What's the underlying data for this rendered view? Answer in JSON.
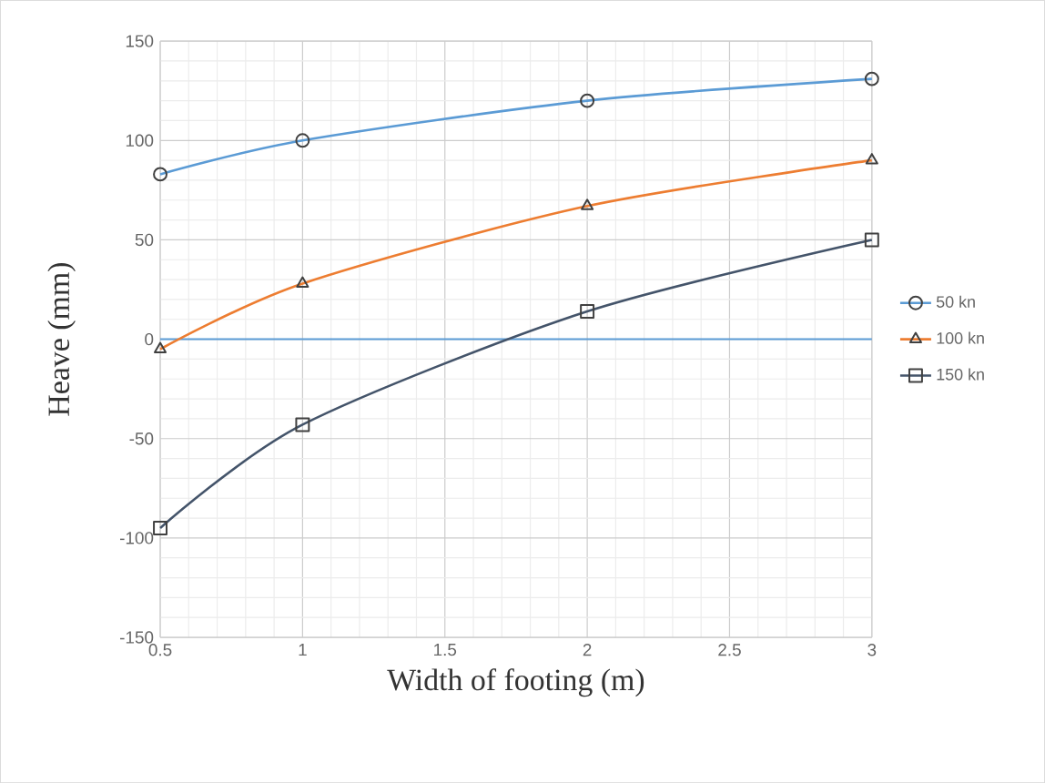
{
  "chart_data": {
    "type": "line",
    "xlabel": "Width of footing (m)",
    "ylabel": "Heave (mm)",
    "xlim": [
      0.5,
      3
    ],
    "xticks": [
      0.5,
      1,
      1.5,
      2,
      2.5,
      3
    ],
    "ylim": [
      -150,
      150
    ],
    "yticks": [
      -150,
      -100,
      -50,
      0,
      50,
      100,
      150
    ],
    "grid": true,
    "legend": "right",
    "line_style": "solid",
    "ref_lines": [
      {
        "axis": "y",
        "value": 0,
        "color": "#5b9bd5"
      }
    ],
    "series": [
      {
        "name": "50 kn",
        "color": "#5b9bd5",
        "marker": "circle",
        "x": [
          0.5,
          1,
          2,
          3
        ],
        "values": [
          83,
          100,
          120,
          131
        ]
      },
      {
        "name": "100 kn",
        "color": "#ed7d31",
        "marker": "triangle",
        "x": [
          0.5,
          1,
          2,
          3
        ],
        "values": [
          -5,
          28,
          67,
          90
        ]
      },
      {
        "name": "150 kn",
        "color": "#44546a",
        "marker": "square",
        "x": [
          0.5,
          1,
          2,
          3
        ],
        "values": [
          -95,
          -43,
          14,
          50
        ]
      }
    ]
  }
}
